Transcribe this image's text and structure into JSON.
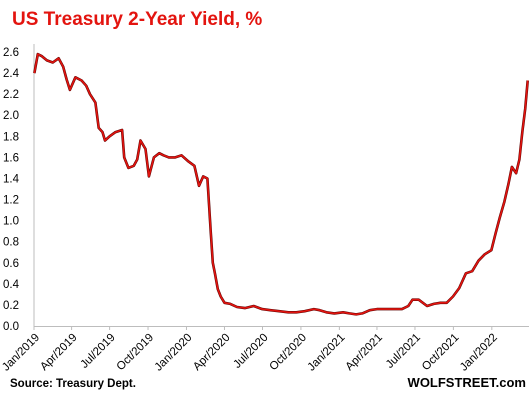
{
  "chart_data": {
    "type": "line",
    "title": "US Treasury 2-Year Yield, %",
    "xlabel": "",
    "ylabel": "",
    "ylim": [
      0,
      2.6
    ],
    "yticks": [
      "0.0",
      "0.2",
      "0.4",
      "0.6",
      "0.8",
      "1.0",
      "1.2",
      "1.4",
      "1.6",
      "1.8",
      "2.0",
      "2.2",
      "2.4",
      "2.6"
    ],
    "xticks": [
      "Jan/2019",
      "Apr/2019",
      "Jul/2019",
      "Oct/2019",
      "Jan/2020",
      "Apr/2020",
      "Jul/2020",
      "Oct/2020",
      "Jan/2021",
      "Apr/2021",
      "Jul/2021",
      "Oct/2021",
      "Jan/2022"
    ],
    "grid": false,
    "series": [
      {
        "color": "#e3140f",
        "x": [
          "2019-01-02",
          "2019-01-10",
          "2019-01-20",
          "2019-02-01",
          "2019-02-15",
          "2019-03-01",
          "2019-03-12",
          "2019-03-20",
          "2019-03-28",
          "2019-04-10",
          "2019-04-25",
          "2019-05-06",
          "2019-05-15",
          "2019-05-28",
          "2019-06-05",
          "2019-06-14",
          "2019-06-20",
          "2019-07-01",
          "2019-07-15",
          "2019-07-31",
          "2019-08-05",
          "2019-08-15",
          "2019-08-28",
          "2019-09-05",
          "2019-09-13",
          "2019-09-25",
          "2019-10-03",
          "2019-10-15",
          "2019-10-28",
          "2019-11-07",
          "2019-11-20",
          "2019-12-05",
          "2019-12-20",
          "2020-01-06",
          "2020-01-20",
          "2020-01-31",
          "2020-02-10",
          "2020-02-20",
          "2020-02-28",
          "2020-03-04",
          "2020-03-09",
          "2020-03-16",
          "2020-03-23",
          "2020-04-01",
          "2020-04-15",
          "2020-05-01",
          "2020-05-20",
          "2020-06-10",
          "2020-06-30",
          "2020-07-20",
          "2020-08-10",
          "2020-09-01",
          "2020-09-20",
          "2020-10-10",
          "2020-11-01",
          "2020-11-15",
          "2020-12-01",
          "2020-12-20",
          "2021-01-10",
          "2021-01-25",
          "2021-02-10",
          "2021-02-25",
          "2021-03-15",
          "2021-04-01",
          "2021-04-20",
          "2021-05-10",
          "2021-05-31",
          "2021-06-15",
          "2021-06-25",
          "2021-07-10",
          "2021-07-30",
          "2021-08-15",
          "2021-08-31",
          "2021-09-15",
          "2021-09-30",
          "2021-10-15",
          "2021-10-31",
          "2021-11-15",
          "2021-11-30",
          "2021-12-15",
          "2021-12-31",
          "2022-01-10",
          "2022-01-20",
          "2022-01-31",
          "2022-02-10",
          "2022-02-18",
          "2022-02-28",
          "2022-03-08",
          "2022-03-15",
          "2022-03-22",
          "2022-03-28"
        ],
        "values": [
          2.4,
          2.58,
          2.56,
          2.52,
          2.5,
          2.54,
          2.46,
          2.34,
          2.24,
          2.36,
          2.33,
          2.28,
          2.2,
          2.12,
          1.88,
          1.84,
          1.76,
          1.8,
          1.84,
          1.86,
          1.6,
          1.5,
          1.52,
          1.58,
          1.76,
          1.68,
          1.42,
          1.6,
          1.64,
          1.62,
          1.6,
          1.6,
          1.62,
          1.56,
          1.52,
          1.33,
          1.42,
          1.4,
          0.9,
          0.6,
          0.5,
          0.35,
          0.28,
          0.22,
          0.21,
          0.18,
          0.17,
          0.19,
          0.16,
          0.15,
          0.14,
          0.13,
          0.13,
          0.14,
          0.16,
          0.15,
          0.13,
          0.12,
          0.13,
          0.12,
          0.11,
          0.12,
          0.15,
          0.16,
          0.16,
          0.16,
          0.16,
          0.19,
          0.25,
          0.25,
          0.19,
          0.21,
          0.22,
          0.22,
          0.28,
          0.36,
          0.5,
          0.52,
          0.62,
          0.68,
          0.72,
          0.88,
          1.03,
          1.18,
          1.35,
          1.51,
          1.45,
          1.58,
          1.84,
          2.06,
          2.33
        ]
      }
    ],
    "source": "Source: Treasury Dept.",
    "brand": "WOLFSTREET.com"
  }
}
